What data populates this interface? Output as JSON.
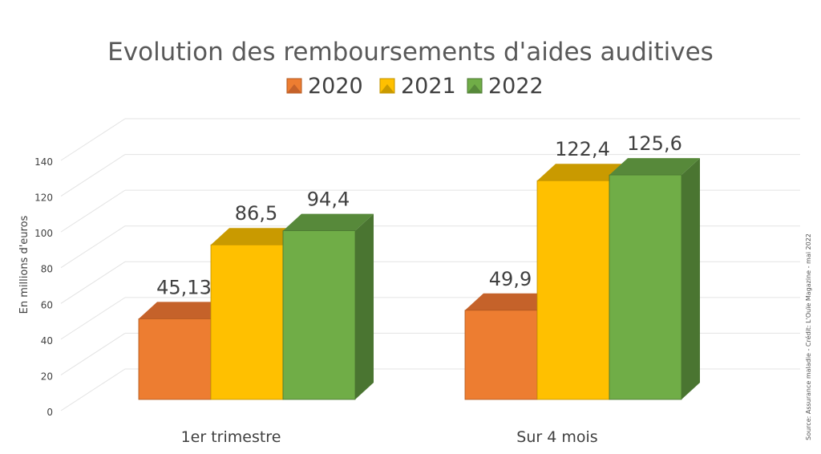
{
  "chart_data": {
    "type": "bar",
    "title": "Evolution des remboursements d'aides auditives",
    "ylabel": "En millions d'euros",
    "xlabel": "",
    "categories": [
      "1er trimestre",
      "Sur 4 mois"
    ],
    "series": [
      {
        "name": "2020",
        "values": [
          45.13,
          49.9
        ],
        "labels": [
          "45,13",
          "49,9"
        ]
      },
      {
        "name": "2021",
        "values": [
          86.5,
          122.4
        ],
        "labels": [
          "86,5",
          "122,4"
        ]
      },
      {
        "name": "2022",
        "values": [
          94.4,
          125.6
        ],
        "labels": [
          "94,4",
          "125,6"
        ]
      }
    ],
    "ylim": [
      0,
      140
    ],
    "yticks": [
      "0",
      "20",
      "40",
      "60",
      "80",
      "100",
      "120",
      "140"
    ],
    "grid": true,
    "three_d": true,
    "legend_position": "top",
    "source_note": "Source: Assurance maladie - Crédit: L'Ouïe Magazine - mai 2022"
  },
  "colors": {
    "series": [
      {
        "front": "#ed7d31",
        "top": "#c5622a",
        "side": "#b0571f"
      },
      {
        "front": "#ffc000",
        "top": "#c99a00",
        "side": "#bf9000"
      },
      {
        "front": "#70ad47",
        "top": "#57893a",
        "side": "#4a7531"
      }
    ],
    "grid": "#e3e3e3",
    "text": "#404040"
  }
}
